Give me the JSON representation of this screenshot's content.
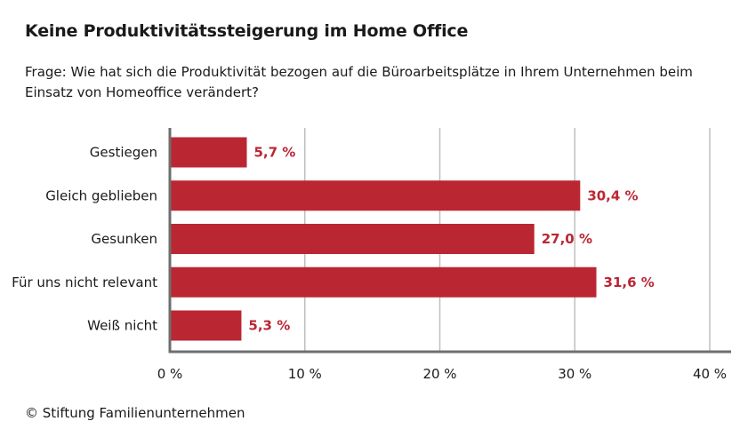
{
  "title": "Keine Produktivitätssteigerung im Home Office",
  "question": "Frage: Wie hat sich die Produktivität bezogen auf die Büroarbeitsplätze in Ihrem Unternehmen beim Einsatz von Homeoffice verändert?",
  "footer": "© Stiftung Familienunternehmen",
  "colors": {
    "bar": "#bb2633",
    "value_label": "#bb2633",
    "axis": "#6e6e6e",
    "grid": "#bfbfbf"
  },
  "chart_data": {
    "type": "bar",
    "orientation": "horizontal",
    "categories": [
      "Gestiegen",
      "Gleich geblieben",
      "Gesunken",
      "Für uns nicht relevant",
      "Weiß nicht"
    ],
    "values": [
      5.7,
      30.4,
      27.0,
      31.6,
      5.3
    ],
    "value_labels": [
      "5,7 %",
      "30,4 %",
      "27,0 %",
      "31,6 %",
      "5,3 %"
    ],
    "xlim": [
      0,
      40
    ],
    "xticks": [
      0,
      10,
      20,
      30,
      40
    ],
    "xtick_labels": [
      "0 %",
      "10 %",
      "20 %",
      "30 %",
      "40 %"
    ],
    "grid": true
  }
}
